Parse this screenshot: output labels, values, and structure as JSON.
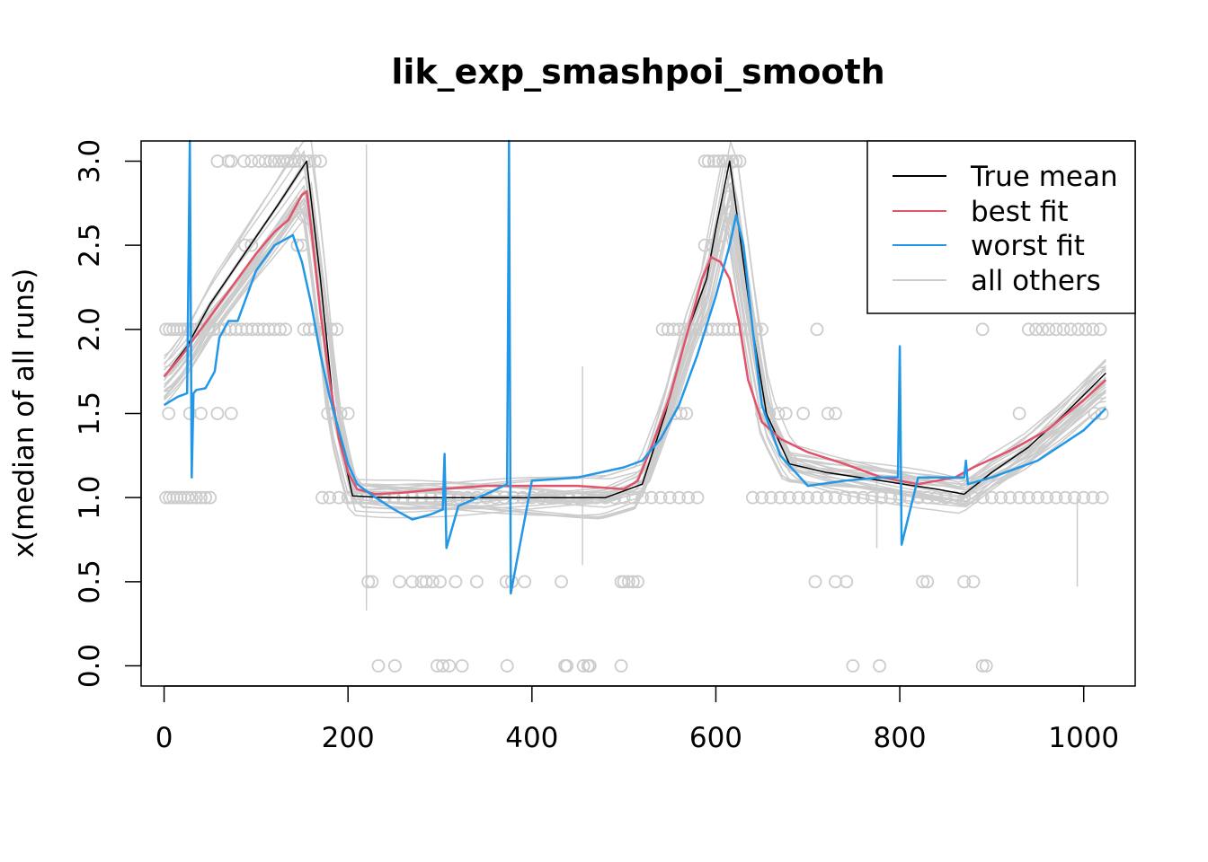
{
  "chart_data": {
    "type": "line",
    "title": "lik_exp_smashpoi_smooth",
    "xlabel": "",
    "ylabel": "x(median of all runs)",
    "xlim": [
      -25,
      1056
    ],
    "ylim": [
      -0.12,
      3.12
    ],
    "xticks": [
      0,
      200,
      400,
      600,
      800,
      1000
    ],
    "yticks": [
      0.0,
      0.5,
      1.0,
      1.5,
      2.0,
      2.5,
      3.0
    ],
    "xtick_labels": [
      "0",
      "200",
      "400",
      "600",
      "800",
      "1000"
    ],
    "ytick_labels": [
      "0.0",
      "0.5",
      "1.0",
      "1.5",
      "2.0",
      "2.5",
      "3.0"
    ],
    "legend": {
      "position": "top-right",
      "entries": [
        {
          "label": "True mean",
          "color": "#000000"
        },
        {
          "label": "best fit",
          "color": "#DF536B"
        },
        {
          "label": "worst fit",
          "color": "#2297E6"
        },
        {
          "label": "all others",
          "color": "#CCCCCC"
        }
      ]
    },
    "series": [
      {
        "name": "True mean",
        "color": "#000000",
        "x": [
          0,
          25,
          50,
          75,
          100,
          125,
          155,
          170,
          185,
          205,
          240,
          300,
          360,
          420,
          480,
          520,
          545,
          570,
          590,
          600,
          615,
          625,
          640,
          655,
          680,
          720,
          780,
          840,
          870,
          900,
          940,
          980,
          1024
        ],
        "y": [
          1.72,
          1.9,
          2.15,
          2.35,
          2.55,
          2.75,
          3.0,
          2.3,
          1.5,
          1.01,
          1.0,
          1.0,
          1.0,
          1.0,
          1.0,
          1.08,
          1.5,
          2.0,
          2.3,
          2.6,
          3.0,
          2.6,
          2.0,
          1.5,
          1.2,
          1.15,
          1.1,
          1.05,
          1.02,
          1.15,
          1.3,
          1.5,
          1.74
        ]
      },
      {
        "name": "best fit",
        "color": "#DF536B",
        "x": [
          0,
          20,
          40,
          60,
          80,
          100,
          120,
          135,
          145,
          150,
          155,
          160,
          170,
          180,
          190,
          200,
          210,
          230,
          260,
          300,
          350,
          400,
          450,
          500,
          515,
          530,
          550,
          570,
          585,
          595,
          605,
          615,
          625,
          635,
          650,
          670,
          700,
          740,
          780,
          820,
          860,
          880,
          920,
          960,
          1000,
          1024
        ],
        "y": [
          1.72,
          1.85,
          2.0,
          2.15,
          2.3,
          2.45,
          2.58,
          2.65,
          2.75,
          2.8,
          2.82,
          2.6,
          2.1,
          1.7,
          1.35,
          1.15,
          1.05,
          1.02,
          1.03,
          1.05,
          1.07,
          1.07,
          1.07,
          1.05,
          1.1,
          1.3,
          1.6,
          2.0,
          2.3,
          2.43,
          2.4,
          2.3,
          2.05,
          1.7,
          1.45,
          1.35,
          1.27,
          1.2,
          1.12,
          1.08,
          1.12,
          1.18,
          1.28,
          1.4,
          1.58,
          1.7
        ]
      },
      {
        "name": "worst fit",
        "color": "#2297E6",
        "x": [
          0,
          15,
          25,
          28,
          30,
          32,
          35,
          45,
          55,
          60,
          70,
          80,
          90,
          100,
          120,
          140,
          150,
          160,
          170,
          180,
          190,
          200,
          210,
          230,
          250,
          270,
          290,
          303,
          305,
          307,
          320,
          350,
          373,
          375,
          377,
          400,
          450,
          500,
          520,
          540,
          560,
          580,
          600,
          615,
          622,
          630,
          640,
          650,
          670,
          700,
          740,
          780,
          798,
          800,
          802,
          820,
          870,
          872,
          874,
          900,
          950,
          1000,
          1024
        ],
        "y": [
          1.55,
          1.6,
          1.62,
          3.2,
          1.12,
          1.62,
          1.64,
          1.65,
          1.75,
          1.95,
          2.05,
          2.05,
          2.2,
          2.35,
          2.5,
          2.56,
          2.4,
          2.15,
          1.85,
          1.6,
          1.4,
          1.2,
          1.08,
          1.0,
          0.93,
          0.87,
          0.9,
          0.93,
          1.26,
          0.7,
          0.95,
          1.02,
          1.08,
          3.2,
          0.43,
          1.1,
          1.12,
          1.18,
          1.22,
          1.35,
          1.55,
          1.85,
          2.2,
          2.5,
          2.68,
          2.5,
          2.0,
          1.55,
          1.25,
          1.07,
          1.1,
          1.12,
          1.12,
          1.9,
          0.72,
          1.12,
          1.12,
          1.22,
          1.08,
          1.12,
          1.22,
          1.4,
          1.53
        ]
      }
    ],
    "other_runs": {
      "count": 24,
      "color": "#CCCCCC"
    },
    "observed_points": [
      {
        "y": 3.0,
        "x": [
          58,
          70,
          73,
          87,
          95,
          103,
          110,
          116,
          120,
          125,
          130,
          134,
          138,
          142,
          147,
          152,
          158,
          164,
          170,
          588,
          592,
          598,
          603,
          608,
          612,
          618,
          622,
          626
        ]
      },
      {
        "y": 2.5,
        "x": [
          88,
          95,
          145,
          150,
          588,
          596,
          602
        ]
      },
      {
        "y": 2.0,
        "x": [
          2,
          6,
          10,
          14,
          18,
          22,
          26,
          30,
          36,
          42,
          48,
          54,
          60,
          66,
          72,
          78,
          84,
          90,
          96,
          102,
          108,
          114,
          120,
          126,
          132,
          152,
          158,
          164,
          170,
          176,
          182,
          188,
          542,
          548,
          554,
          560,
          566,
          572,
          578,
          584,
          590,
          596,
          602,
          608,
          614,
          620,
          626,
          632,
          638,
          644,
          650,
          710,
          890,
          940,
          948,
          955,
          962,
          970,
          978,
          986,
          994,
          1002,
          1010,
          1018
        ]
      },
      {
        "y": 1.5,
        "x": [
          5,
          28,
          40,
          58,
          73,
          178,
          185,
          192,
          200,
          548,
          556,
          562,
          568,
          650,
          658,
          668,
          676,
          695,
          722,
          730,
          930,
          1012,
          1020
        ]
      },
      {
        "y": 1.0,
        "x": [
          2,
          6,
          10,
          14,
          18,
          22,
          26,
          30,
          35,
          40,
          45,
          50,
          172,
          180,
          190,
          200,
          210,
          220,
          230,
          240,
          250,
          260,
          270,
          280,
          290,
          300,
          310,
          320,
          330,
          340,
          350,
          360,
          370,
          380,
          390,
          400,
          410,
          420,
          430,
          440,
          450,
          460,
          470,
          480,
          490,
          500,
          510,
          520,
          530,
          540,
          550,
          560,
          570,
          580,
          640,
          650,
          660,
          670,
          680,
          690,
          700,
          710,
          720,
          730,
          740,
          750,
          760,
          770,
          780,
          790,
          800,
          810,
          820,
          830,
          840,
          850,
          860,
          870,
          880,
          890,
          900,
          910,
          920,
          930,
          940,
          950,
          960,
          970,
          980,
          990,
          1000,
          1010,
          1020
        ]
      },
      {
        "y": 0.5,
        "x": [
          222,
          226,
          256,
          270,
          280,
          285,
          292,
          300,
          317,
          340,
          372,
          378,
          392,
          432,
          497,
          500,
          505,
          510,
          515,
          708,
          730,
          742,
          825,
          830,
          870,
          880
        ]
      },
      {
        "y": 0.0,
        "x": [
          233,
          251,
          297,
          303,
          310,
          324,
          373,
          436,
          438,
          456,
          461,
          463,
          497,
          749,
          778,
          890,
          894
        ]
      }
    ]
  }
}
